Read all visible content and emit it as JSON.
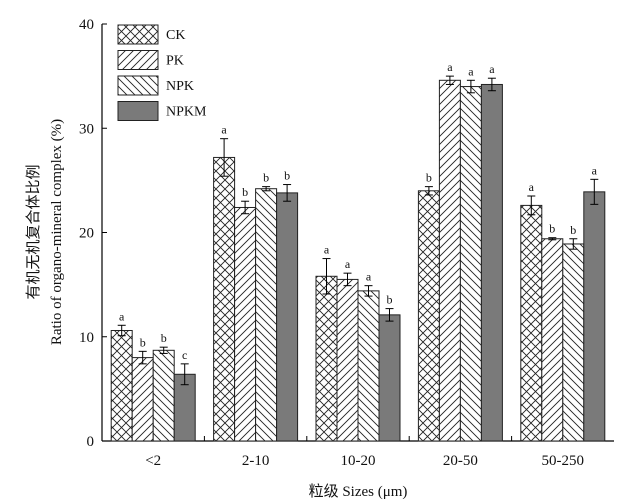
{
  "chart_data": {
    "type": "bar",
    "xlabel": "粒级 Sizes (μm)",
    "ylabel_cn": "有机无机复合体比例",
    "ylabel_en": "Ratio of organo-mineral complex (%)",
    "ylim": [
      0,
      40
    ],
    "yticks": [
      "0",
      "10",
      "20",
      "30",
      "40"
    ],
    "categories": [
      "<2",
      "2-10",
      "10-20",
      "20-50",
      "50-250"
    ],
    "legend_position": "top-left",
    "series": [
      {
        "name": "CK",
        "fill": "crosshatch",
        "color": "#333333",
        "values": [
          10.6,
          27.2,
          15.8,
          24.0,
          22.6
        ],
        "errors": [
          0.5,
          1.8,
          1.7,
          0.4,
          0.9
        ],
        "sig": [
          "a",
          "a",
          "a",
          "b",
          "a"
        ]
      },
      {
        "name": "PK",
        "fill": "forward-diagonal",
        "color": "#333333",
        "values": [
          8.0,
          22.4,
          15.5,
          34.6,
          19.4
        ],
        "errors": [
          0.6,
          0.6,
          0.6,
          0.4,
          0.1
        ],
        "sig": [
          "b",
          "b",
          "a",
          "a",
          "b"
        ]
      },
      {
        "name": "NPK",
        "fill": "back-diagonal",
        "color": "#333333",
        "values": [
          8.7,
          24.2,
          14.4,
          34.0,
          18.9
        ],
        "errors": [
          0.3,
          0.2,
          0.5,
          0.6,
          0.5
        ],
        "sig": [
          "b",
          "b",
          "a",
          "a",
          "b"
        ]
      },
      {
        "name": "NPKM",
        "fill": "solid",
        "color": "#7a7a7a",
        "values": [
          6.4,
          23.8,
          12.1,
          34.2,
          23.9
        ],
        "errors": [
          1.0,
          0.8,
          0.6,
          0.6,
          1.2
        ],
        "sig": [
          "c",
          "b",
          "b",
          "a",
          "a"
        ]
      }
    ]
  }
}
